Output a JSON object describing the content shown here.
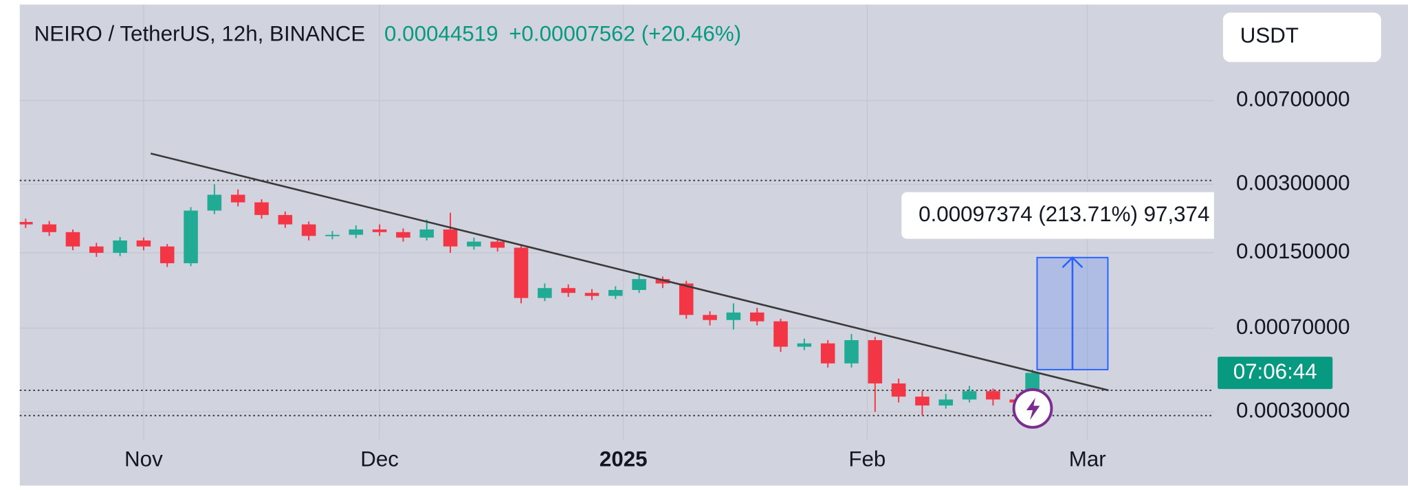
{
  "chart_data": {
    "type": "candlestick",
    "title": "NEIRO / TetherUS, 12h, BINANCE",
    "last_price": "0.00044519",
    "change": "+0.00007562 (+20.46%)",
    "currency_button": "USDT",
    "countdown": "07:06:44",
    "measure_label": "0.00097374 (213.71%) 97,374",
    "colors": {
      "up": "#22ab94",
      "down": "#f23645",
      "trendline": "#3a3a3a",
      "measure": "#2962ff"
    },
    "log_scale": true,
    "grid": true,
    "xlim": [
      -15.75,
      136.1
    ],
    "xticks": [
      {
        "value": 0,
        "label": "Nov"
      },
      {
        "value": 30,
        "label": "Dec"
      },
      {
        "value": 61,
        "label": "2025"
      },
      {
        "value": 92,
        "label": "Feb"
      },
      {
        "value": 120,
        "label": "Mar"
      }
    ],
    "ylim": [
      0.000226,
      0.0185
    ],
    "yticks": [
      {
        "value": 0.007,
        "label": "0.00700000"
      },
      {
        "value": 0.003,
        "label": "0.00300000"
      },
      {
        "value": 0.0015,
        "label": "0.00150000"
      },
      {
        "value": 0.0007,
        "label": "0.00070000"
      },
      {
        "value": 0.0003,
        "label": "0.00030000"
      }
    ],
    "x": [
      -15,
      -12,
      -9,
      -6,
      -3,
      0,
      3,
      6,
      9,
      12,
      15,
      18,
      21,
      24,
      27,
      30,
      33,
      36,
      39,
      42,
      45,
      48,
      51,
      54,
      57,
      60,
      63,
      66,
      69,
      72,
      75,
      78,
      81,
      84,
      87,
      90,
      93,
      96,
      99,
      102,
      105,
      108,
      111,
      113
    ],
    "open": [
      0.00205,
      0.002,
      0.00185,
      0.0016,
      0.0015,
      0.0017,
      0.0016,
      0.00135,
      0.0023,
      0.0027,
      0.0025,
      0.0022,
      0.002,
      0.00178,
      0.0018,
      0.0019,
      0.00185,
      0.00175,
      0.0019,
      0.0016,
      0.00168,
      0.00158,
      0.00095,
      0.00105,
      0.001,
      0.00097,
      0.00103,
      0.00115,
      0.0011,
      0.0008,
      0.00076,
      0.00082,
      0.00075,
      0.00058,
      0.0006,
      0.00049,
      0.00062,
      0.0004,
      0.00035,
      0.00032,
      0.00034,
      0.00037,
      0.00034,
      0.00033
    ],
    "high": [
      0.00212,
      0.00207,
      0.0019,
      0.00166,
      0.00176,
      0.00175,
      0.00164,
      0.00238,
      0.003,
      0.00285,
      0.00258,
      0.00228,
      0.00206,
      0.00187,
      0.00198,
      0.002,
      0.00192,
      0.0021,
      0.00225,
      0.00175,
      0.00172,
      0.00162,
      0.0011,
      0.00109,
      0.00104,
      0.00107,
      0.0012,
      0.00118,
      0.00113,
      0.00083,
      0.0009,
      0.00086,
      0.00077,
      0.00063,
      0.00062,
      0.00066,
      0.00064,
      0.00042,
      0.00037,
      0.00036,
      0.00039,
      0.00038,
      0.00036,
      0.00046
    ],
    "low": [
      0.00193,
      0.00178,
      0.00154,
      0.00144,
      0.00145,
      0.00154,
      0.0013,
      0.00131,
      0.00222,
      0.0024,
      0.00212,
      0.00193,
      0.0017,
      0.00172,
      0.00174,
      0.00178,
      0.00168,
      0.0017,
      0.0015,
      0.00155,
      0.00152,
      0.0009,
      0.00092,
      0.00096,
      0.00093,
      0.00094,
      0.001,
      0.00105,
      0.00077,
      0.00072,
      0.00069,
      0.00072,
      0.00055,
      0.00056,
      0.00047,
      0.00047,
      0.0003,
      0.00033,
      0.00029,
      0.00031,
      0.00033,
      0.00032,
      0.00032,
      0.00032
    ],
    "close": [
      0.002,
      0.00185,
      0.0016,
      0.0015,
      0.0017,
      0.0016,
      0.00135,
      0.0023,
      0.0027,
      0.0025,
      0.0022,
      0.002,
      0.00178,
      0.0018,
      0.0019,
      0.00185,
      0.00175,
      0.0019,
      0.0016,
      0.00168,
      0.00158,
      0.00095,
      0.00105,
      0.001,
      0.00097,
      0.00103,
      0.00115,
      0.0011,
      0.0008,
      0.00076,
      0.00082,
      0.00075,
      0.00058,
      0.0006,
      0.00049,
      0.00062,
      0.0004,
      0.00035,
      0.00032,
      0.00034,
      0.00037,
      0.00034,
      0.00033,
      0.00044519
    ],
    "trendline": {
      "x": [
        0.9,
        122.7
      ],
      "y": [
        0.0041,
        0.000373
      ]
    },
    "measure": {
      "x": [
        113.6,
        122.6
      ],
      "y": [
        0.00046,
        0.00143
      ]
    },
    "hlines": [
      0.00312,
      0.000373,
      0.000289
    ]
  }
}
